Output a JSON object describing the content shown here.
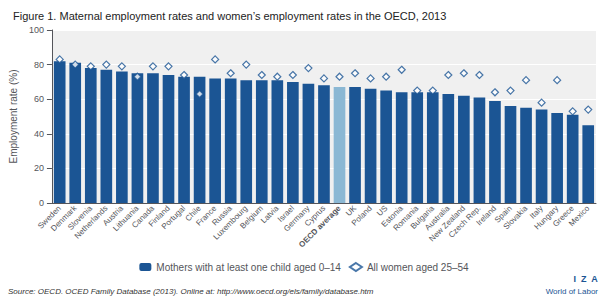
{
  "chart_data": {
    "type": "bar",
    "title": "Figure 1. Maternal employment rates and women’s employment rates in the OECD, 2013",
    "ylabel": "Employment rate (%)",
    "annotations": [
      "Source: OECD. OCED Family Database (2013). Online at: http://www.oecd.org/els/family/database.htm",
      "I  Z  A",
      "World of Labor"
    ],
    "categories": [
      "Sweden",
      "Denmark",
      "Slovenia",
      "Netherlands",
      "Austria",
      "Lithuania",
      "Canada",
      "Finland",
      "Portugal",
      "Chile",
      "France",
      "Russia",
      "Luxembourg",
      "Belgium",
      "Latvia",
      "Israel",
      "Germany",
      "Cyprus",
      "OECD average",
      "UK",
      "Poland",
      "US",
      "Estonia",
      "Romania",
      "Bulgaria",
      "Australia",
      "New Zealand",
      "Czech Rep.",
      "Ireland",
      "Spain",
      "Slovakia",
      "Italy",
      "Hungary",
      "Greece",
      "Mexico"
    ],
    "series": [
      {
        "name": "Mothers with at least one child aged 0–14",
        "type": "bar",
        "color": "#1B5594",
        "colors": [
          "#1B5594",
          "#1B5594",
          "#1B5594",
          "#1B5594",
          "#1B5594",
          "#1B5594",
          "#1B5594",
          "#1B5594",
          "#1B5594",
          "#1B5594",
          "#1B5594",
          "#1B5594",
          "#1B5594",
          "#1B5594",
          "#1B5594",
          "#1B5594",
          "#1B5594",
          "#1B5594",
          "#8BB8D4",
          "#1B5594",
          "#1B5594",
          "#1B5594",
          "#1B5594",
          "#1B5594",
          "#1B5594",
          "#1B5594",
          "#1B5594",
          "#1B5594",
          "#1B5594",
          "#1B5594",
          "#1B5594",
          "#1B5594",
          "#1B5594",
          "#1B5594",
          "#1B5594"
        ],
        "values": [
          82,
          81,
          78,
          77,
          76,
          75,
          75,
          74,
          73,
          73,
          72,
          72,
          71,
          71,
          71,
          70,
          69,
          68,
          67,
          67,
          66,
          65,
          64,
          64,
          64,
          63,
          62,
          61,
          59,
          56,
          55,
          54,
          52,
          51,
          45
        ]
      },
      {
        "name": "All women aged 25–54",
        "type": "scatter",
        "marker": "diamond",
        "color": "#1B5594",
        "values": [
          83,
          80,
          79,
          80,
          79,
          73,
          79,
          79,
          74,
          63,
          83,
          75,
          80,
          74,
          73,
          74,
          78,
          72,
          73,
          75,
          72,
          73,
          77,
          65,
          65,
          74,
          75,
          74,
          64,
          65,
          71,
          58,
          71,
          53,
          54
        ]
      }
    ],
    "ylim": [
      0,
      100
    ],
    "yticks": [
      0,
      20,
      40,
      60,
      80,
      100
    ],
    "grid": true,
    "legend": "bottom"
  }
}
